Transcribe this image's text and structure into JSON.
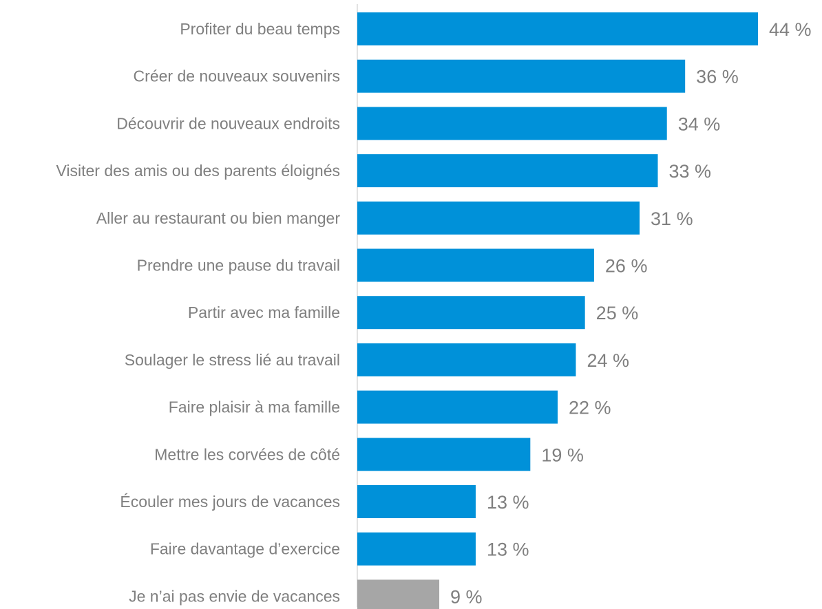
{
  "chart_data": {
    "type": "bar",
    "orientation": "horizontal",
    "categories": [
      "Profiter du beau temps",
      "Créer de nouveaux souvenirs",
      "Découvrir de nouveaux endroits",
      "Visiter des amis ou des parents éloignés",
      "Aller au restaurant ou bien manger",
      "Prendre une pause du travail",
      "Partir avec ma famille",
      "Soulager le stress lié au travail",
      "Faire plaisir à ma famille",
      "Mettre les corvées de côté",
      "Écouler mes jours de vacances",
      "Faire davantage d’exercice",
      "Je n’ai pas envie de vacances"
    ],
    "values": [
      44,
      36,
      34,
      33,
      31,
      26,
      25,
      24,
      22,
      19,
      13,
      13,
      9
    ],
    "value_labels": [
      "44 %",
      "36 %",
      "34 %",
      "33 %",
      "31 %",
      "26 %",
      "25 %",
      "24 %",
      "22 %",
      "19 %",
      "13 %",
      "13 %",
      "9 %"
    ],
    "bar_colors": [
      "#0091d9",
      "#0091d9",
      "#0091d9",
      "#0091d9",
      "#0091d9",
      "#0091d9",
      "#0091d9",
      "#0091d9",
      "#0091d9",
      "#0091d9",
      "#0091d9",
      "#0091d9",
      "#a6a6a6"
    ],
    "axis_color": "#d9d9d9",
    "text_color": "#7f7f7f",
    "xlim": [
      0,
      44
    ],
    "grid": false,
    "legend": "none"
  }
}
